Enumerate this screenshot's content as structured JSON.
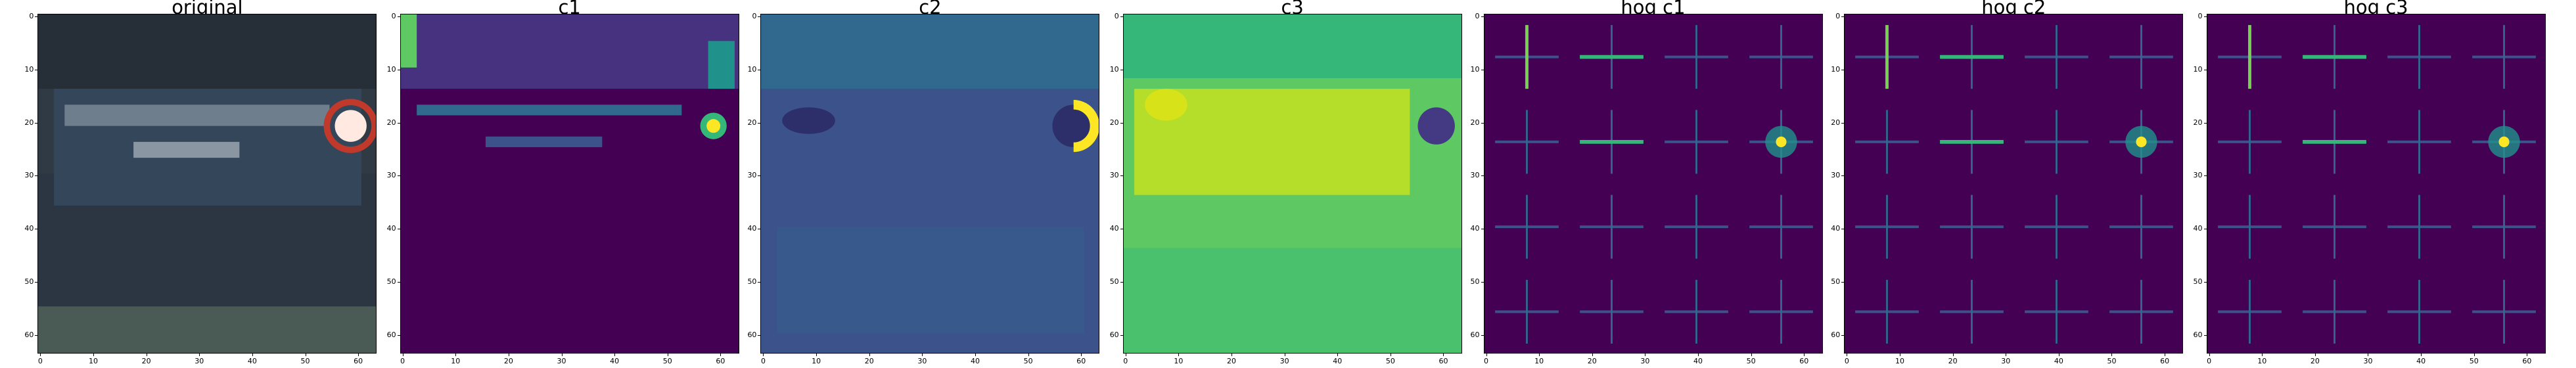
{
  "panels": [
    {
      "title": "original",
      "kind": "photo"
    },
    {
      "title": "c1",
      "kind": "viridis-c1"
    },
    {
      "title": "c2",
      "kind": "viridis-c2"
    },
    {
      "title": "c3",
      "kind": "viridis-c3"
    },
    {
      "title": "hog c1",
      "kind": "hog"
    },
    {
      "title": "hog c2",
      "kind": "hog"
    },
    {
      "title": "hog c3",
      "kind": "hog"
    }
  ],
  "y_ticks": [
    "0",
    "10",
    "20",
    "30",
    "40",
    "50",
    "60"
  ],
  "x_ticks": [
    "0",
    "10",
    "20",
    "30",
    "40",
    "50",
    "60"
  ],
  "colors": {
    "viridis_dark": "#440154",
    "viridis_mid": "#31688e",
    "viridis_teal": "#21918c",
    "viridis_green": "#35b779",
    "viridis_yellow": "#fde725"
  }
}
